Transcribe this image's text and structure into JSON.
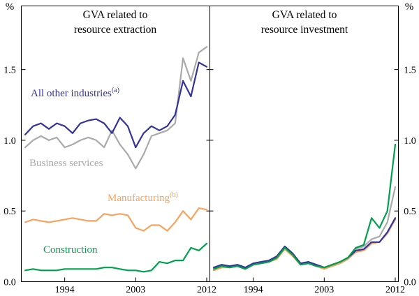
{
  "unit_left": "%",
  "unit_right": "%",
  "chart_data": [
    {
      "type": "line",
      "title": "GVA related to\nresource extraction",
      "ylabel": "%",
      "ylim": [
        0,
        1.95
      ],
      "ytick_values": [
        0,
        0.5,
        1.0,
        1.5
      ],
      "xticks": [
        1994,
        2003,
        2012
      ],
      "xlim": [
        1988.5,
        2012.4
      ],
      "grid": false,
      "legend_position": "in-plot-labels",
      "x": [
        1989,
        1990,
        1991,
        1992,
        1993,
        1994,
        1995,
        1996,
        1997,
        1998,
        1999,
        2000,
        2001,
        2002,
        2003,
        2004,
        2005,
        2006,
        2007,
        2008,
        2009,
        2010,
        2011,
        2012
      ],
      "series": [
        {
          "name": "All other industries",
          "sup": "(a)",
          "color": "#33339A",
          "values": [
            1.04,
            1.1,
            1.12,
            1.08,
            1.12,
            1.1,
            1.05,
            1.12,
            1.14,
            1.15,
            1.12,
            1.05,
            1.16,
            1.1,
            0.95,
            1.05,
            1.1,
            1.07,
            1.1,
            1.18,
            1.42,
            1.31,
            1.55,
            1.52
          ]
        },
        {
          "name": "Business services",
          "sup": "",
          "color": "#AAAAAA",
          "values": [
            0.95,
            1.0,
            1.03,
            1.0,
            1.02,
            0.95,
            0.97,
            1.0,
            1.02,
            1.0,
            0.95,
            1.07,
            0.97,
            0.9,
            0.8,
            0.9,
            1.03,
            1.05,
            1.07,
            1.12,
            1.58,
            1.42,
            1.62,
            1.66
          ]
        },
        {
          "name": "Manufacturing",
          "sup": "(b)",
          "color": "#F8A35C",
          "values": [
            0.42,
            0.44,
            0.43,
            0.42,
            0.43,
            0.44,
            0.45,
            0.44,
            0.43,
            0.43,
            0.48,
            0.47,
            0.48,
            0.47,
            0.38,
            0.36,
            0.4,
            0.4,
            0.36,
            0.42,
            0.5,
            0.44,
            0.52,
            0.51
          ]
        },
        {
          "name": "Construction",
          "sup": "",
          "color": "#00A14E",
          "values": [
            0.08,
            0.09,
            0.08,
            0.08,
            0.08,
            0.09,
            0.09,
            0.09,
            0.09,
            0.09,
            0.1,
            0.1,
            0.09,
            0.08,
            0.08,
            0.07,
            0.08,
            0.14,
            0.13,
            0.15,
            0.15,
            0.24,
            0.22,
            0.27
          ]
        }
      ]
    },
    {
      "type": "line",
      "title": "GVA related to\nresource investment",
      "ylabel": "%",
      "ylim": [
        0,
        1.95
      ],
      "ytick_values": [
        0,
        0.5,
        1.0,
        1.5
      ],
      "xticks": [
        1994,
        2003,
        2012
      ],
      "xlim": [
        1988.5,
        2012.4
      ],
      "grid": false,
      "legend_position": "none",
      "x": [
        1989,
        1990,
        1991,
        1992,
        1993,
        1994,
        1995,
        1996,
        1997,
        1998,
        1999,
        2000,
        2001,
        2002,
        2003,
        2004,
        2005,
        2006,
        2007,
        2008,
        2009,
        2010,
        2011,
        2012
      ],
      "series": [
        {
          "name": "All other industries",
          "sup": "",
          "color": "#33339A",
          "values": [
            0.1,
            0.12,
            0.11,
            0.12,
            0.1,
            0.13,
            0.14,
            0.15,
            0.18,
            0.25,
            0.2,
            0.13,
            0.14,
            0.12,
            0.1,
            0.12,
            0.14,
            0.17,
            0.22,
            0.23,
            0.28,
            0.28,
            0.35,
            0.45
          ]
        },
        {
          "name": "Business services",
          "sup": "",
          "color": "#AAAAAA",
          "values": [
            0.09,
            0.11,
            0.1,
            0.11,
            0.09,
            0.12,
            0.13,
            0.14,
            0.17,
            0.24,
            0.19,
            0.12,
            0.13,
            0.11,
            0.1,
            0.11,
            0.13,
            0.16,
            0.23,
            0.25,
            0.3,
            0.32,
            0.42,
            0.67
          ]
        },
        {
          "name": "Manufacturing",
          "sup": "",
          "color": "#F8A35C",
          "values": [
            0.08,
            0.1,
            0.1,
            0.11,
            0.09,
            0.12,
            0.13,
            0.14,
            0.16,
            0.23,
            0.18,
            0.12,
            0.13,
            0.11,
            0.09,
            0.11,
            0.13,
            0.16,
            0.21,
            0.22,
            0.27,
            0.28,
            0.34,
            0.44
          ]
        },
        {
          "name": "Construction",
          "sup": "",
          "color": "#00A14E",
          "values": [
            0.09,
            0.11,
            0.1,
            0.11,
            0.09,
            0.12,
            0.13,
            0.14,
            0.17,
            0.24,
            0.19,
            0.12,
            0.13,
            0.11,
            0.1,
            0.12,
            0.14,
            0.17,
            0.24,
            0.26,
            0.45,
            0.38,
            0.5,
            0.97
          ]
        }
      ]
    }
  ]
}
